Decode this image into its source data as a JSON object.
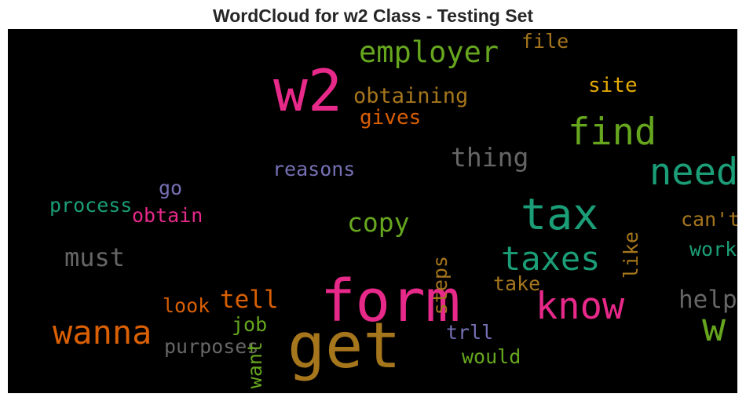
{
  "chart_data": {
    "type": "wordcloud",
    "title": "WordCloud for w2 Class - Testing Set",
    "background": "#000000",
    "words": [
      {
        "text": "get",
        "weight": 1.0,
        "color": "#a6761d",
        "orientation": "horizontal"
      },
      {
        "text": "form",
        "weight": 0.92,
        "color": "#e7298a",
        "orientation": "horizontal"
      },
      {
        "text": "w2",
        "weight": 0.9,
        "color": "#e7298a",
        "orientation": "horizontal"
      },
      {
        "text": "tax",
        "weight": 0.66,
        "color": "#1b9e77",
        "orientation": "horizontal"
      },
      {
        "text": "w",
        "weight": 0.6,
        "color": "#66a61e",
        "orientation": "horizontal"
      },
      {
        "text": "need",
        "weight": 0.56,
        "color": "#1b9e77",
        "orientation": "horizontal"
      },
      {
        "text": "find",
        "weight": 0.56,
        "color": "#66a61e",
        "orientation": "horizontal"
      },
      {
        "text": "know",
        "weight": 0.55,
        "color": "#e7298a",
        "orientation": "horizontal"
      },
      {
        "text": "wanna",
        "weight": 0.49,
        "color": "#d95f02",
        "orientation": "horizontal"
      },
      {
        "text": "taxes",
        "weight": 0.48,
        "color": "#1b9e77",
        "orientation": "horizontal"
      },
      {
        "text": "employer",
        "weight": 0.42,
        "color": "#66a61e",
        "orientation": "horizontal"
      },
      {
        "text": "thing",
        "weight": 0.36,
        "color": "#666666",
        "orientation": "horizontal"
      },
      {
        "text": "copy",
        "weight": 0.36,
        "color": "#66a61e",
        "orientation": "horizontal"
      },
      {
        "text": "must",
        "weight": 0.35,
        "color": "#666666",
        "orientation": "horizontal"
      },
      {
        "text": "help",
        "weight": 0.34,
        "color": "#666666",
        "orientation": "horizontal"
      },
      {
        "text": "tell",
        "weight": 0.34,
        "color": "#d95f02",
        "orientation": "horizontal"
      },
      {
        "text": "obtaining",
        "weight": 0.28,
        "color": "#a6761d",
        "orientation": "horizontal"
      },
      {
        "text": "gives",
        "weight": 0.27,
        "color": "#d95f02",
        "orientation": "horizontal"
      },
      {
        "text": "site",
        "weight": 0.27,
        "color": "#e6ab02",
        "orientation": "horizontal"
      },
      {
        "text": "file",
        "weight": 0.26,
        "color": "#a6761d",
        "orientation": "horizontal"
      },
      {
        "text": "reasons",
        "weight": 0.26,
        "color": "#7570b3",
        "orientation": "horizontal"
      },
      {
        "text": "go",
        "weight": 0.26,
        "color": "#7570b3",
        "orientation": "horizontal"
      },
      {
        "text": "process",
        "weight": 0.26,
        "color": "#1b9e77",
        "orientation": "horizontal"
      },
      {
        "text": "obtain",
        "weight": 0.26,
        "color": "#e7298a",
        "orientation": "horizontal"
      },
      {
        "text": "can't",
        "weight": 0.26,
        "color": "#a6761d",
        "orientation": "horizontal"
      },
      {
        "text": "work",
        "weight": 0.26,
        "color": "#1b9e77",
        "orientation": "horizontal"
      },
      {
        "text": "like",
        "weight": 0.26,
        "color": "#a6761d",
        "orientation": "vertical"
      },
      {
        "text": "steps",
        "weight": 0.26,
        "color": "#a6761d",
        "orientation": "vertical"
      },
      {
        "text": "take",
        "weight": 0.26,
        "color": "#a6761d",
        "orientation": "horizontal"
      },
      {
        "text": "look",
        "weight": 0.26,
        "color": "#d95f02",
        "orientation": "horizontal"
      },
      {
        "text": "job",
        "weight": 0.26,
        "color": "#66a61e",
        "orientation": "horizontal"
      },
      {
        "text": "purposes",
        "weight": 0.26,
        "color": "#666666",
        "orientation": "horizontal"
      },
      {
        "text": "want",
        "weight": 0.26,
        "color": "#66a61e",
        "orientation": "vertical"
      },
      {
        "text": "trll",
        "weight": 0.26,
        "color": "#7570b3",
        "orientation": "horizontal"
      },
      {
        "text": "would",
        "weight": 0.26,
        "color": "#66a61e",
        "orientation": "horizontal"
      }
    ]
  }
}
